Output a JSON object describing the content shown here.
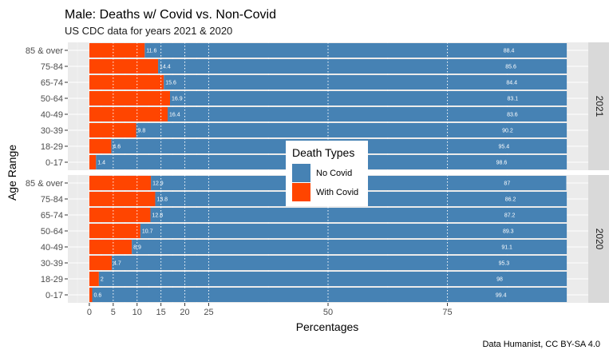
{
  "title": "Male: Deaths w/ Covid vs. Non-Covid",
  "subtitle": "US CDC data for years 2021 & 2020",
  "caption": "Data Humanist, CC BY-SA 4.0",
  "chart_data": {
    "type": "bar",
    "orientation": "horizontal-stacked",
    "xlabel": "Percentages",
    "ylabel": "Age Range",
    "xlim": [
      0,
      100
    ],
    "x_ticks": [
      0,
      5,
      10,
      15,
      20,
      25,
      50,
      75
    ],
    "grid": true,
    "categories": [
      "85 & over",
      "75-84",
      "65-74",
      "50-64",
      "40-49",
      "30-39",
      "18-29",
      "0-17"
    ],
    "legend": {
      "title": "Death Types",
      "position": "center",
      "entries": [
        "No Covid",
        "With Covid"
      ]
    },
    "colors": {
      "no_covid": "#4682B4",
      "with_covid": "#FF4500"
    },
    "panels": [
      {
        "strip": "2021",
        "series": [
          {
            "name": "With Covid",
            "values": [
              11.6,
              14.4,
              15.6,
              16.9,
              16.4,
              9.8,
              4.6,
              1.4
            ]
          },
          {
            "name": "No Covid",
            "values": [
              88.4,
              85.6,
              84.4,
              83.1,
              83.6,
              90.2,
              95.4,
              98.6
            ]
          }
        ]
      },
      {
        "strip": "2020",
        "series": [
          {
            "name": "With Covid",
            "values": [
              12.9,
              13.8,
              12.8,
              10.7,
              8.9,
              4.7,
              2,
              0.6
            ]
          },
          {
            "name": "No Covid",
            "values": [
              87,
              86.2,
              87.2,
              89.3,
              91.1,
              95.3,
              98,
              99.4
            ]
          }
        ]
      }
    ]
  }
}
